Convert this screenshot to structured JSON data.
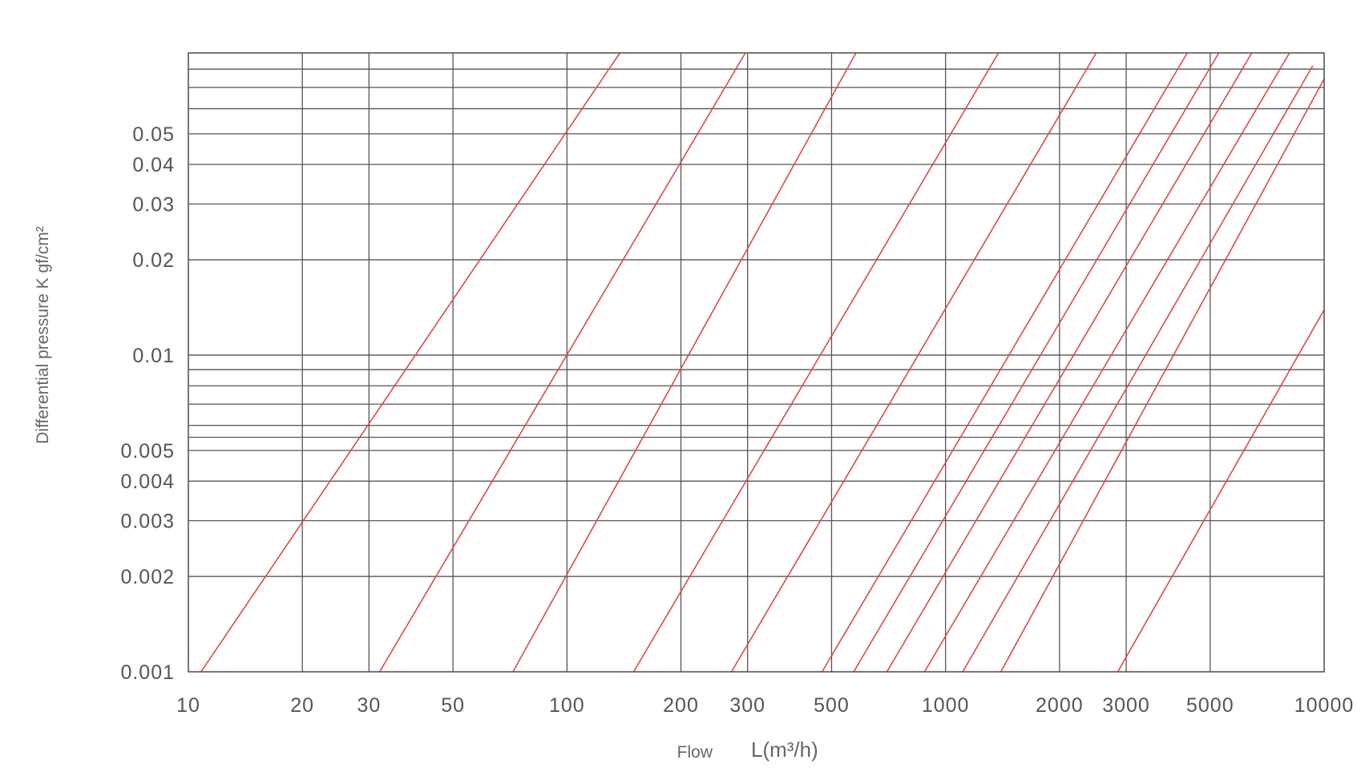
{
  "chart_data": {
    "type": "line",
    "title": "",
    "xlabel": "Flow",
    "xlabel_unit": "L(m³/h)",
    "ylabel": "Differential pressure K gf/cm²",
    "x_scale": "log",
    "y_scale": "log",
    "xlim": [
      10,
      10000
    ],
    "ylim": [
      0.001,
      0.09
    ],
    "grid": true,
    "x_ticks": [
      10,
      20,
      30,
      50,
      100,
      200,
      300,
      500,
      1000,
      2000,
      3000,
      5000,
      10000
    ],
    "x_tick_labels": [
      "10",
      "20",
      "30",
      "50",
      "100",
      "200",
      "300",
      "500",
      "1000",
      "2000",
      "3000",
      "5000",
      "10000"
    ],
    "x_gridlines": [
      20,
      30,
      50,
      100,
      200,
      300,
      500,
      1000,
      2000,
      3000,
      5000
    ],
    "y_ticks": [
      0.001,
      0.002,
      0.003,
      0.004,
      0.005,
      0.01,
      0.02,
      0.03,
      0.04,
      0.05
    ],
    "y_tick_labels": [
      "0.001",
      "0.002",
      "0.003",
      "0.004",
      "0.005",
      "0.01",
      "0.02",
      "0.03",
      "0.04",
      "0.05"
    ],
    "y_gridlines": [
      0.002,
      0.003,
      0.004,
      0.005,
      0.0055,
      0.006,
      0.007,
      0.008,
      0.009,
      0.01,
      0.02,
      0.03,
      0.04,
      0.05,
      0.06,
      0.07,
      0.08
    ],
    "line_color": "#d94a4a",
    "grid_color": "#555555",
    "series": [
      {
        "points": [
          [
            10.8,
            0.001
          ],
          [
            138,
            0.09
          ]
        ]
      },
      {
        "points": [
          [
            32,
            0.001
          ],
          [
            296,
            0.09
          ]
        ]
      },
      {
        "points": [
          [
            72,
            0.001
          ],
          [
            580,
            0.09
          ]
        ]
      },
      {
        "points": [
          [
            150,
            0.001
          ],
          [
            1380,
            0.09
          ]
        ]
      },
      {
        "points": [
          [
            272,
            0.001
          ],
          [
            2500,
            0.09
          ]
        ]
      },
      {
        "points": [
          [
            472,
            0.001
          ],
          [
            4350,
            0.09
          ]
        ]
      },
      {
        "points": [
          [
            572,
            0.001
          ],
          [
            5270,
            0.09
          ]
        ]
      },
      {
        "points": [
          [
            700,
            0.001
          ],
          [
            6440,
            0.09
          ]
        ]
      },
      {
        "points": [
          [
            880,
            0.001
          ],
          [
            8100,
            0.09
          ]
        ]
      },
      {
        "points": [
          [
            1110,
            0.001
          ],
          [
            9330,
            0.082
          ]
        ]
      },
      {
        "points": [
          [
            1400,
            0.001
          ],
          [
            10000,
            0.0745
          ]
        ]
      },
      {
        "points": [
          [
            2850,
            0.001
          ],
          [
            10000,
            0.0139
          ]
        ]
      }
    ]
  }
}
